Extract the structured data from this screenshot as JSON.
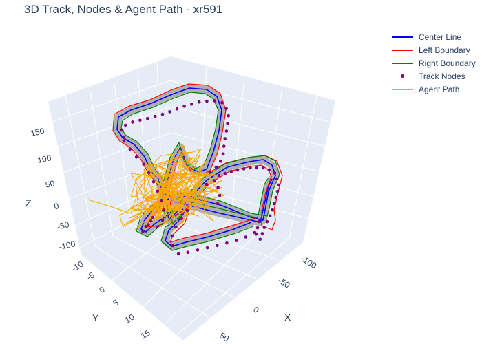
{
  "title": "3D Track, Nodes & Agent Path - xr591",
  "legend": {
    "items": [
      {
        "label": "Center Line",
        "color": "#0000ff",
        "kind": "line"
      },
      {
        "label": "Left Boundary",
        "color": "#ff0000",
        "kind": "line"
      },
      {
        "label": "Right Boundary",
        "color": "#008000",
        "kind": "line"
      },
      {
        "label": "Track Nodes",
        "color": "#800080",
        "kind": "marker"
      },
      {
        "label": "Agent Path",
        "color": "#ffa500",
        "kind": "line"
      }
    ]
  },
  "chart_data": {
    "type": "scatter",
    "subtype": "3d-lines-and-markers",
    "title": "3D Track, Nodes & Agent Path - xr591",
    "axes": {
      "x": {
        "label": "X",
        "ticks": [
          "-100",
          "-50",
          "0",
          "50"
        ]
      },
      "y": {
        "label": "Y",
        "ticks": [
          "-10",
          "-5",
          "0",
          "5",
          "10",
          "15"
        ]
      },
      "z": {
        "label": "Z",
        "ticks": [
          "-100",
          "-50",
          "0",
          "50",
          "100",
          "150"
        ]
      }
    },
    "series": [
      {
        "name": "Center Line",
        "mode": "lines",
        "color": "#0000ff"
      },
      {
        "name": "Left Boundary",
        "mode": "lines",
        "color": "#ff0000"
      },
      {
        "name": "Right Boundary",
        "mode": "lines",
        "color": "#008000"
      },
      {
        "name": "Track Nodes",
        "mode": "markers",
        "color": "#800080"
      },
      {
        "name": "Agent Path",
        "mode": "lines",
        "color": "#ffa500"
      }
    ],
    "colors": {
      "surface": "#a9a9a9",
      "pane": "#e5ecf6",
      "text": "#2a3f5f",
      "grid": "#ffffff"
    },
    "grid": true,
    "legend_position": "top-right"
  }
}
